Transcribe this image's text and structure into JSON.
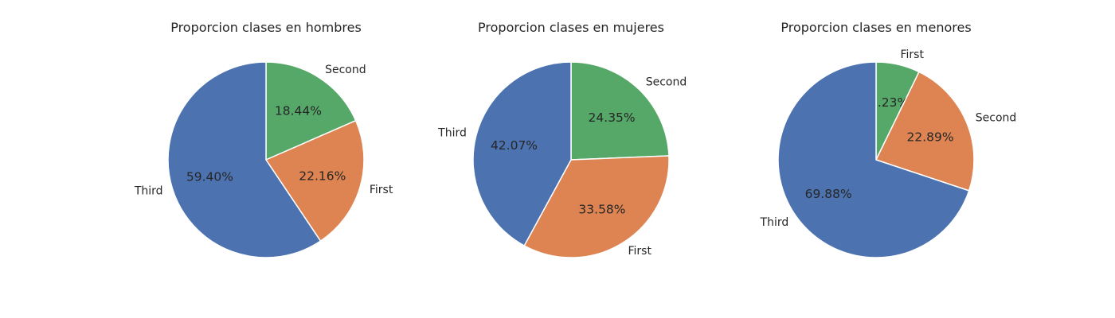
{
  "chart_data": [
    {
      "type": "pie",
      "title": "Proporcion clases en hombres",
      "start_angle_deg": 90,
      "direction": "clockwise",
      "slices": [
        {
          "label": "Second",
          "value": 18.44,
          "pct_label": "18.44%",
          "color": "#55a868"
        },
        {
          "label": "First",
          "value": 22.16,
          "pct_label": "22.16%",
          "color": "#dd8452"
        },
        {
          "label": "Third",
          "value": 59.4,
          "pct_label": "59.40%",
          "color": "#4c72b0"
        }
      ]
    },
    {
      "type": "pie",
      "title": "Proporcion clases en mujeres",
      "start_angle_deg": 90,
      "direction": "clockwise",
      "slices": [
        {
          "label": "Second",
          "value": 24.35,
          "pct_label": "24.35%",
          "color": "#55a868"
        },
        {
          "label": "First",
          "value": 33.58,
          "pct_label": "33.58%",
          "color": "#dd8452"
        },
        {
          "label": "Third",
          "value": 42.07,
          "pct_label": "42.07%",
          "color": "#4c72b0"
        }
      ]
    },
    {
      "type": "pie",
      "title": "Proporcion clases en menores",
      "start_angle_deg": 90,
      "direction": "clockwise",
      "slices": [
        {
          "label": "First",
          "value": 7.23,
          "pct_label": "7.23%",
          "color": "#55a868"
        },
        {
          "label": "Second",
          "value": 22.89,
          "pct_label": "22.89%",
          "color": "#dd8452"
        },
        {
          "label": "Third",
          "value": 69.88,
          "pct_label": "69.88%",
          "color": "#4c72b0"
        }
      ]
    }
  ]
}
